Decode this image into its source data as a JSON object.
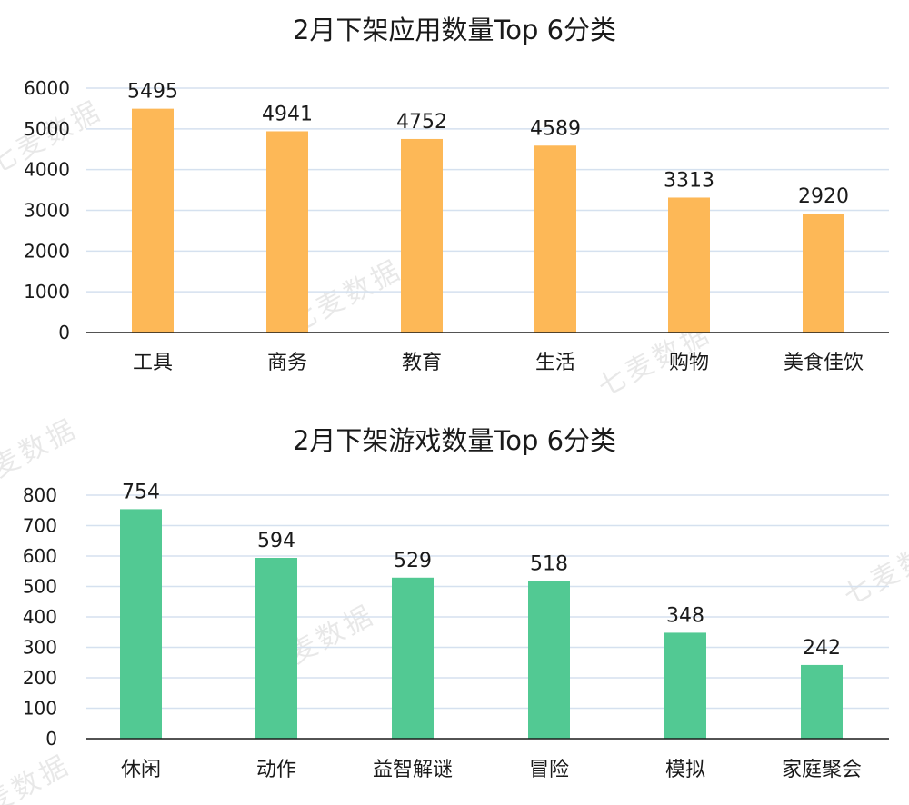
{
  "chart_data": [
    {
      "type": "bar",
      "title": "2月下架应用数量Top 6分类",
      "categories": [
        "工具",
        "商务",
        "教育",
        "生活",
        "购物",
        "美食佳饮"
      ],
      "values": [
        5495,
        4941,
        4752,
        4589,
        3313,
        2920
      ],
      "ylim": [
        0,
        6000
      ],
      "yticks": [
        0,
        1000,
        2000,
        3000,
        4000,
        5000,
        6000
      ],
      "xlabel": "",
      "ylabel": "",
      "grid": true,
      "bar_color": "#FDB857",
      "data_labels": true
    },
    {
      "type": "bar",
      "title": "2月下架游戏数量Top 6分类",
      "categories": [
        "休闲",
        "动作",
        "益智解谜",
        "冒险",
        "模拟",
        "家庭聚会"
      ],
      "values": [
        754,
        594,
        529,
        518,
        348,
        242
      ],
      "ylim": [
        0,
        800
      ],
      "yticks": [
        0,
        100,
        200,
        300,
        400,
        500,
        600,
        700,
        800
      ],
      "xlabel": "",
      "ylabel": "",
      "grid": true,
      "bar_color": "#52C993",
      "data_labels": true
    }
  ],
  "watermark": "七麦数据",
  "colors": {
    "grid": "#D5E1EF",
    "axis": "#1a1a1a"
  }
}
